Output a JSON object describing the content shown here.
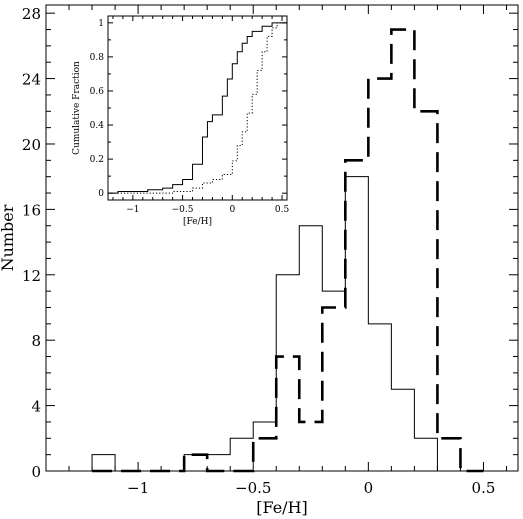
{
  "chart_data": [
    {
      "type": "histogram",
      "xlabel": "[Fe/H]",
      "ylabel": "Number",
      "xlim": [
        -1.4,
        0.65
      ],
      "ylim": [
        0,
        28.5
      ],
      "xticks": [
        -1,
        -0.5,
        0,
        0.5
      ],
      "xtick_labels": [
        "−1",
        "−0.5",
        "0",
        "0.5"
      ],
      "yticks": [
        0,
        4,
        8,
        12,
        16,
        20,
        24,
        28
      ],
      "ytick_labels": [
        "0",
        "4",
        "8",
        "12",
        "16",
        "20",
        "24",
        "28"
      ],
      "bin_edges": [
        -1.2,
        -1.1,
        -1.0,
        -0.9,
        -0.8,
        -0.7,
        -0.6,
        -0.5,
        -0.4,
        -0.3,
        -0.2,
        -0.1,
        0.0,
        0.1,
        0.2,
        0.3,
        0.4,
        0.5
      ],
      "series": [
        {
          "style": "solid",
          "values": [
            1,
            0,
            0,
            0,
            1,
            1,
            2,
            3,
            12,
            15,
            11,
            18,
            9,
            5,
            2,
            0,
            0
          ]
        },
        {
          "style": "dashed",
          "values": [
            0,
            0,
            0,
            0,
            1,
            0,
            0,
            2,
            7,
            3,
            10,
            19,
            24,
            27,
            22,
            2,
            0
          ]
        }
      ]
    },
    {
      "type": "line",
      "xlabel": "[Fe/H]",
      "ylabel": "Cumulative Fraction",
      "xlim": [
        -1.25,
        0.55
      ],
      "ylim": [
        -0.04,
        1.04
      ],
      "xticks": [
        -1,
        -0.5,
        0,
        0.5
      ],
      "xtick_labels": [
        "−1",
        "−0.5",
        "0",
        "0.5"
      ],
      "yticks": [
        0,
        0.2,
        0.4,
        0.6,
        0.8,
        1
      ],
      "ytick_labels": [
        "0",
        "0.2",
        "0.4",
        "0.6",
        "0.8",
        "1"
      ],
      "series": [
        {
          "style": "solid",
          "x": [
            -1.25,
            -1.15,
            -1.0,
            -0.85,
            -0.7,
            -0.6,
            -0.5,
            -0.4,
            -0.3,
            -0.25,
            -0.2,
            -0.1,
            -0.05,
            0.0,
            0.05,
            0.1,
            0.15,
            0.2,
            0.3,
            0.4,
            0.55
          ],
          "y": [
            0.0,
            0.01,
            0.01,
            0.02,
            0.03,
            0.05,
            0.08,
            0.17,
            0.33,
            0.42,
            0.46,
            0.57,
            0.67,
            0.76,
            0.83,
            0.88,
            0.92,
            0.95,
            0.98,
            1.0,
            1.0
          ]
        },
        {
          "style": "dotted",
          "x": [
            -1.25,
            -0.8,
            -0.6,
            -0.4,
            -0.3,
            -0.2,
            -0.1,
            0.0,
            0.05,
            0.1,
            0.15,
            0.2,
            0.25,
            0.3,
            0.35,
            0.4,
            0.45,
            0.55
          ],
          "y": [
            0.0,
            0.0,
            0.01,
            0.03,
            0.06,
            0.08,
            0.11,
            0.19,
            0.28,
            0.36,
            0.47,
            0.58,
            0.72,
            0.83,
            0.92,
            0.97,
            1.0,
            1.0
          ]
        }
      ]
    }
  ]
}
